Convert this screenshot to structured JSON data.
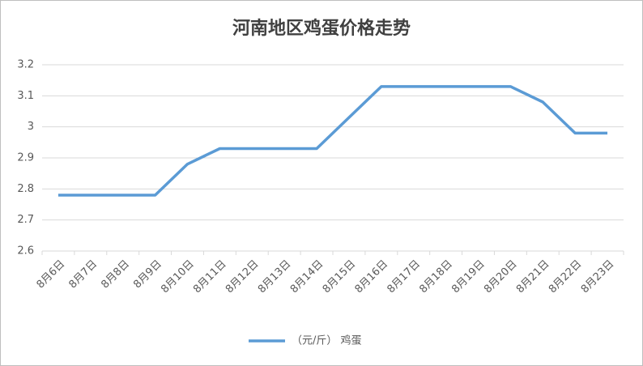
{
  "chart_data": {
    "type": "line",
    "title": "河南地区鸡蛋价格走势",
    "categories": [
      "8月6日",
      "8月7日",
      "8月8日",
      "8月9日",
      "8月10日",
      "8月11日",
      "8月12日",
      "8月13日",
      "8月14日",
      "8月15日",
      "8月16日",
      "8月17日",
      "8月18日",
      "8月19日",
      "8月20日",
      "8月21日",
      "8月22日",
      "8月23日"
    ],
    "series": [
      {
        "name": "（元/斤） 鸡蛋",
        "color": "#5b9bd5",
        "values": [
          2.78,
          2.78,
          2.78,
          2.78,
          2.88,
          2.93,
          2.93,
          2.93,
          2.93,
          3.03,
          3.13,
          3.13,
          3.13,
          3.13,
          3.13,
          3.08,
          2.98,
          2.98
        ]
      }
    ],
    "ylim": [
      2.6,
      3.2
    ],
    "yticks": [
      2.6,
      2.7,
      2.8,
      2.9,
      3,
      3.1,
      3.2
    ],
    "grid": true,
    "legend": "bottom"
  }
}
